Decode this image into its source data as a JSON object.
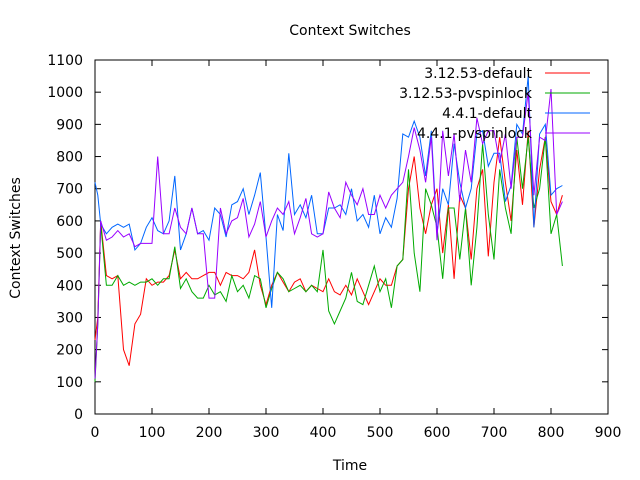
{
  "chart_data": {
    "type": "line",
    "title": "Context Switches",
    "xlabel": "Time",
    "ylabel": "Context Switches",
    "xlim": [
      0,
      900
    ],
    "ylim": [
      0,
      1100
    ],
    "xticks": [
      0,
      100,
      200,
      300,
      400,
      500,
      600,
      700,
      800,
      900
    ],
    "yticks": [
      0,
      100,
      200,
      300,
      400,
      500,
      600,
      700,
      800,
      900,
      1000,
      1100
    ],
    "grid": false,
    "legend_position": "top-right",
    "x": [
      0,
      5,
      10,
      20,
      30,
      40,
      50,
      60,
      70,
      80,
      90,
      100,
      110,
      120,
      130,
      140,
      150,
      160,
      170,
      180,
      190,
      200,
      210,
      220,
      230,
      240,
      250,
      260,
      270,
      280,
      290,
      300,
      310,
      320,
      330,
      340,
      350,
      360,
      370,
      380,
      390,
      400,
      410,
      420,
      430,
      440,
      450,
      460,
      470,
      480,
      490,
      500,
      510,
      520,
      530,
      540,
      550,
      560,
      570,
      580,
      590,
      600,
      610,
      620,
      630,
      640,
      650,
      660,
      670,
      680,
      690,
      700,
      710,
      720,
      730,
      740,
      750,
      760,
      770,
      780,
      790,
      800,
      810,
      820
    ],
    "series": [
      {
        "name": "3.12.53-default",
        "color": "#ff0000",
        "values": [
          230,
          300,
          600,
          430,
          420,
          430,
          200,
          150,
          280,
          310,
          420,
          400,
          410,
          410,
          430,
          510,
          420,
          440,
          420,
          420,
          430,
          440,
          440,
          400,
          440,
          430,
          430,
          420,
          440,
          510,
          400,
          340,
          400,
          440,
          410,
          380,
          410,
          420,
          380,
          400,
          390,
          380,
          420,
          380,
          370,
          400,
          370,
          420,
          380,
          340,
          380,
          420,
          400,
          400,
          460,
          480,
          700,
          800,
          640,
          560,
          650,
          700,
          500,
          650,
          420,
          680,
          640,
          480,
          700,
          760,
          490,
          720,
          860,
          720,
          600,
          820,
          650,
          880,
          580,
          760,
          860,
          660,
          620,
          680
        ]
      },
      {
        "name": "3.12.53-pvspinlock",
        "color": "#00aa00",
        "values": [
          100,
          280,
          590,
          400,
          400,
          430,
          400,
          410,
          400,
          410,
          410,
          420,
          400,
          420,
          420,
          520,
          390,
          420,
          380,
          360,
          360,
          400,
          370,
          380,
          350,
          430,
          380,
          400,
          360,
          430,
          420,
          330,
          390,
          440,
          420,
          380,
          390,
          400,
          380,
          400,
          380,
          510,
          320,
          280,
          320,
          360,
          440,
          350,
          340,
          400,
          460,
          380,
          420,
          330,
          460,
          480,
          760,
          500,
          380,
          700,
          650,
          580,
          420,
          640,
          640,
          480,
          640,
          400,
          580,
          840,
          620,
          480,
          760,
          640,
          560,
          860,
          700,
          860,
          640,
          700,
          860,
          560,
          620,
          460
        ]
      },
      {
        "name": "4.4.1-default",
        "color": "#0066ff",
        "values": [
          720,
          680,
          590,
          560,
          580,
          590,
          580,
          590,
          510,
          530,
          580,
          610,
          570,
          560,
          600,
          740,
          510,
          560,
          640,
          560,
          570,
          540,
          640,
          620,
          550,
          650,
          660,
          700,
          620,
          680,
          750,
          550,
          330,
          620,
          570,
          810,
          620,
          650,
          610,
          680,
          560,
          560,
          640,
          640,
          650,
          620,
          700,
          600,
          620,
          580,
          680,
          560,
          610,
          580,
          670,
          870,
          860,
          910,
          860,
          740,
          880,
          560,
          700,
          650,
          840,
          720,
          640,
          700,
          870,
          880,
          770,
          810,
          810,
          660,
          710,
          900,
          870,
          1050,
          580,
          870,
          900,
          680,
          700,
          710
        ]
      },
      {
        "name": "4.4.1-pvspinlock",
        "color": "#9900ff",
        "values": [
          110,
          280,
          600,
          540,
          550,
          570,
          550,
          560,
          520,
          530,
          530,
          530,
          800,
          560,
          560,
          640,
          580,
          560,
          640,
          560,
          560,
          360,
          360,
          640,
          560,
          600,
          610,
          670,
          550,
          590,
          660,
          550,
          600,
          640,
          620,
          660,
          560,
          610,
          670,
          560,
          550,
          560,
          690,
          640,
          610,
          720,
          680,
          650,
          700,
          620,
          620,
          680,
          640,
          680,
          700,
          720,
          800,
          890,
          820,
          720,
          860,
          540,
          880,
          740,
          870,
          660,
          820,
          720,
          920,
          840,
          880,
          880,
          780,
          870,
          700,
          860,
          860,
          1000,
          680,
          860,
          850,
          1010,
          620,
          660
        ]
      }
    ]
  }
}
